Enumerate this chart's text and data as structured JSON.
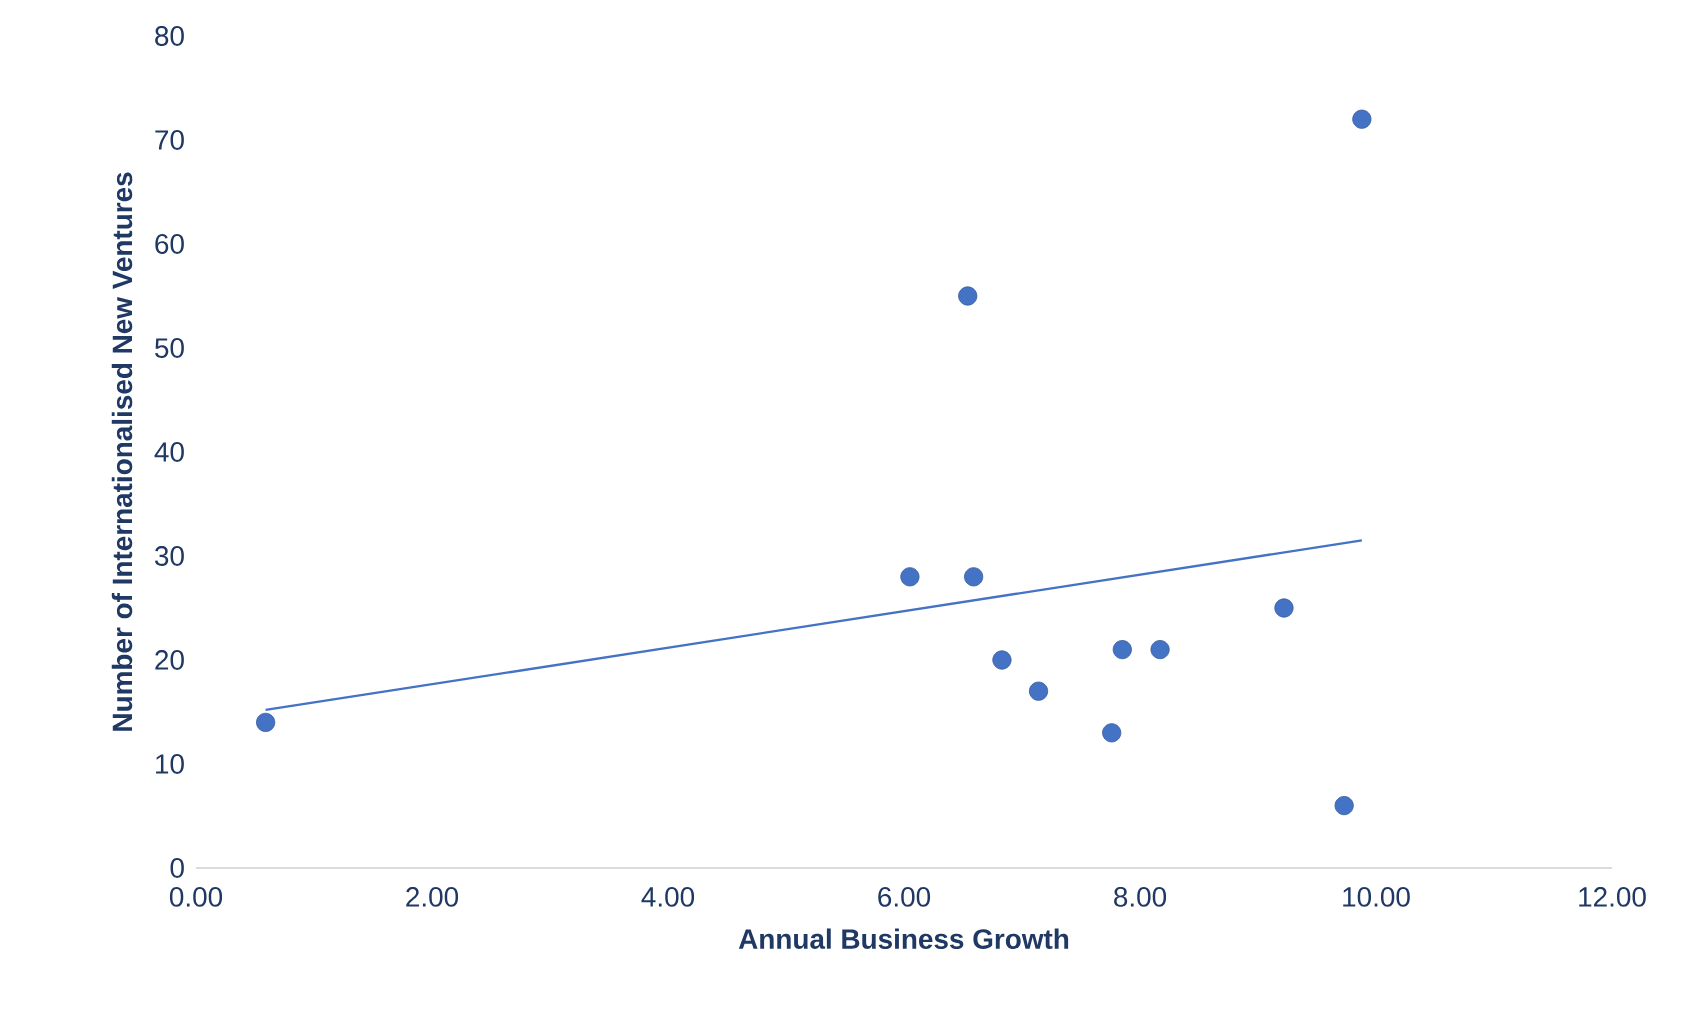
{
  "chart_data": {
    "type": "scatter",
    "xlabel": "Annual Business Growth",
    "ylabel": "Number of Internationalised New Ventures",
    "xlim": [
      0,
      12
    ],
    "ylim": [
      0,
      80
    ],
    "xticks": [
      {
        "value": 0,
        "label": "0.00"
      },
      {
        "value": 2,
        "label": "2.00"
      },
      {
        "value": 4,
        "label": "4.00"
      },
      {
        "value": 6,
        "label": "6.00"
      },
      {
        "value": 8,
        "label": "8.00"
      },
      {
        "value": 10,
        "label": "10.00"
      },
      {
        "value": 12,
        "label": "12.00"
      }
    ],
    "yticks": [
      0,
      10,
      20,
      30,
      40,
      50,
      60,
      70,
      80
    ],
    "grid": false,
    "legend": false,
    "series": [
      {
        "color": "#4472c4",
        "marker": "circle",
        "x": [
          0.59,
          6.05,
          6.54,
          6.59,
          6.83,
          7.14,
          7.76,
          7.85,
          8.17,
          9.22,
          9.73,
          9.88
        ],
        "values": [
          14,
          28,
          55,
          28,
          20,
          17,
          13,
          21,
          21,
          25,
          6,
          72
        ]
      },
      {
        "type": "line",
        "color": "#4472c4",
        "line_style": "solid",
        "marker": "none",
        "x": [
          0.59,
          9.88
        ],
        "values": [
          15.2,
          31.5
        ]
      }
    ]
  }
}
